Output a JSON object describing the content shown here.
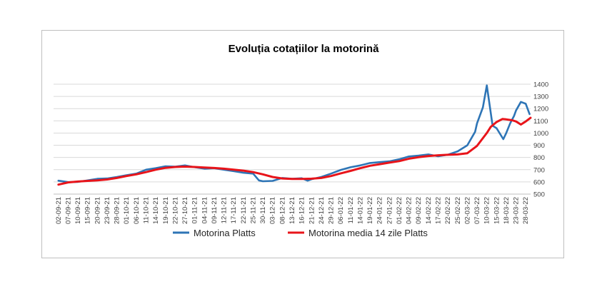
{
  "chart_data": {
    "type": "line",
    "title": "Evoluția cotațiilor la motorină",
    "xlabel": "",
    "ylabel": "",
    "ylim": [
      500,
      1400
    ],
    "yticks": [
      500,
      600,
      700,
      800,
      900,
      1000,
      1100,
      1200,
      1300,
      1400
    ],
    "x_tick_labels": [
      "02-09-21",
      "07-09-21",
      "10-09-21",
      "15-09-21",
      "20-09-21",
      "23-09-21",
      "28-09-21",
      "01-10-21",
      "06-10-21",
      "11-10-21",
      "14-10-21",
      "19-10-21",
      "22-10-21",
      "27-10-21",
      "01-11-21",
      "04-11-21",
      "09-11-21",
      "12-11-21",
      "17-11-21",
      "22-11-21",
      "25-11-21",
      "30-11-21",
      "03-12-21",
      "08-12-21",
      "13-12-21",
      "16-12-21",
      "21-12-21",
      "24-12-21",
      "29-12-21",
      "06-01-22",
      "11-01-22",
      "14-01-22",
      "19-01-22",
      "24-01-22",
      "27-01-22",
      "01-02-22",
      "04-02-22",
      "09-02-22",
      "14-02-22",
      "17-02-22",
      "22-02-22",
      "25-02-22",
      "02-03-22",
      "07-03-22",
      "10-03-22",
      "15-03-22",
      "18-03-22",
      "23-03-22",
      "28-03-22"
    ],
    "legend_position": "bottom",
    "grid": true,
    "series": [
      {
        "name": "Motorina Platts",
        "color": "#2e75b6",
        "points": [
          [
            0,
            610
          ],
          [
            1,
            598
          ],
          [
            2,
            600
          ],
          [
            3,
            612
          ],
          [
            4,
            625
          ],
          [
            5,
            628
          ],
          [
            6,
            640
          ],
          [
            7,
            655
          ],
          [
            8,
            668
          ],
          [
            9,
            700
          ],
          [
            10,
            712
          ],
          [
            11,
            728
          ],
          [
            12,
            725
          ],
          [
            13,
            735
          ],
          [
            14,
            720
          ],
          [
            15,
            708
          ],
          [
            16,
            712
          ],
          [
            17,
            700
          ],
          [
            18,
            688
          ],
          [
            19,
            675
          ],
          [
            20,
            668
          ],
          [
            20.6,
            612
          ],
          [
            21,
            605
          ],
          [
            22,
            608
          ],
          [
            23,
            632
          ],
          [
            24,
            625
          ],
          [
            25,
            630
          ],
          [
            25.6,
            610
          ],
          [
            26,
            622
          ],
          [
            27,
            640
          ],
          [
            28,
            668
          ],
          [
            29,
            698
          ],
          [
            30,
            720
          ],
          [
            31,
            735
          ],
          [
            32,
            755
          ],
          [
            33,
            762
          ],
          [
            34,
            768
          ],
          [
            35,
            785
          ],
          [
            36,
            808
          ],
          [
            37,
            815
          ],
          [
            38,
            825
          ],
          [
            39,
            810
          ],
          [
            40,
            822
          ],
          [
            41,
            850
          ],
          [
            42,
            900
          ],
          [
            42.8,
            1010
          ],
          [
            43,
            1080
          ],
          [
            43.6,
            1210
          ],
          [
            44,
            1390
          ],
          [
            44.6,
            1060
          ],
          [
            45,
            1040
          ],
          [
            45.7,
            950
          ],
          [
            46,
            1000
          ],
          [
            46.4,
            1080
          ],
          [
            46.8,
            1140
          ],
          [
            47,
            1185
          ],
          [
            47.5,
            1255
          ],
          [
            48,
            1240
          ],
          [
            48.4,
            1155
          ]
        ]
      },
      {
        "name": "Motorina media 14 zile Platts",
        "color": "#e8141a",
        "points": [
          [
            0,
            578
          ],
          [
            1,
            596
          ],
          [
            2,
            603
          ],
          [
            3,
            608
          ],
          [
            4,
            612
          ],
          [
            5,
            620
          ],
          [
            6,
            632
          ],
          [
            7,
            648
          ],
          [
            8,
            662
          ],
          [
            9,
            680
          ],
          [
            10,
            700
          ],
          [
            11,
            715
          ],
          [
            12,
            722
          ],
          [
            13,
            725
          ],
          [
            14,
            722
          ],
          [
            15,
            718
          ],
          [
            16,
            714
          ],
          [
            17,
            708
          ],
          [
            18,
            700
          ],
          [
            19,
            692
          ],
          [
            20,
            680
          ],
          [
            21,
            662
          ],
          [
            22,
            640
          ],
          [
            23,
            628
          ],
          [
            24,
            624
          ],
          [
            25,
            624
          ],
          [
            26,
            626
          ],
          [
            27,
            632
          ],
          [
            28,
            648
          ],
          [
            29,
            670
          ],
          [
            30,
            690
          ],
          [
            31,
            712
          ],
          [
            32,
            732
          ],
          [
            33,
            745
          ],
          [
            34,
            758
          ],
          [
            35,
            770
          ],
          [
            36,
            790
          ],
          [
            37,
            802
          ],
          [
            38,
            812
          ],
          [
            39,
            818
          ],
          [
            40,
            822
          ],
          [
            41,
            825
          ],
          [
            42,
            835
          ],
          [
            43,
            895
          ],
          [
            44,
            1000
          ],
          [
            44.4,
            1050
          ],
          [
            45,
            1090
          ],
          [
            45.6,
            1115
          ],
          [
            46,
            1112
          ],
          [
            46.6,
            1105
          ],
          [
            47,
            1095
          ],
          [
            47.5,
            1070
          ],
          [
            48,
            1095
          ],
          [
            48.5,
            1125
          ]
        ]
      }
    ]
  }
}
